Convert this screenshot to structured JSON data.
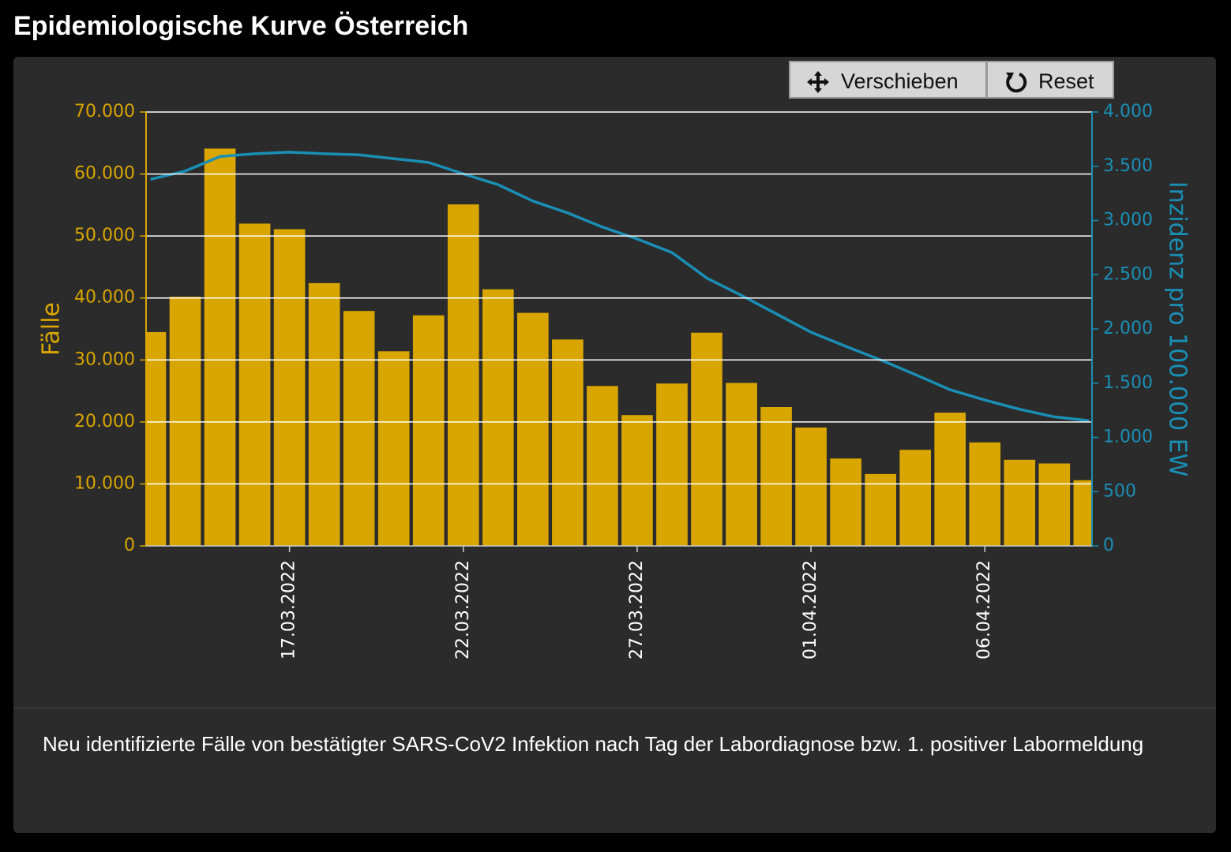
{
  "chart_data": {
    "type": "bar",
    "title": "Epidemiologische Kurve Österreich",
    "caption": "Neu identifizierte Fälle von bestätigter SARS-CoV2 Infektion nach Tag der Labordiagnose bzw. 1. positiver Labormeldung",
    "toolbar": {
      "pan": "Verschieben",
      "reset": "Reset"
    },
    "x": [
      "2022-03-13",
      "2022-03-14",
      "2022-03-15",
      "2022-03-16",
      "2022-03-17",
      "2022-03-18",
      "2022-03-19",
      "2022-03-20",
      "2022-03-21",
      "2022-03-22",
      "2022-03-23",
      "2022-03-24",
      "2022-03-25",
      "2022-03-26",
      "2022-03-27",
      "2022-03-28",
      "2022-03-29",
      "2022-03-30",
      "2022-03-31",
      "2022-04-01",
      "2022-04-02",
      "2022-04-03",
      "2022-04-04",
      "2022-04-05",
      "2022-04-06",
      "2022-04-07",
      "2022-04-08",
      "2022-04-09"
    ],
    "xlim": [
      "2022-03-12T21:00",
      "2022-04-09T02:00"
    ],
    "xticks": [
      {
        "value": "2022-03-17",
        "label": "17.03.2022"
      },
      {
        "value": "2022-03-22",
        "label": "22.03.2022"
      },
      {
        "value": "2022-03-27",
        "label": "27.03.2022"
      },
      {
        "value": "2022-04-01",
        "label": "01.04.2022"
      },
      {
        "value": "2022-04-06",
        "label": "06.04.2022"
      }
    ],
    "series": [
      {
        "name": "Fälle",
        "type": "bar",
        "color": "#d9a600",
        "values": [
          34500,
          40200,
          64100,
          52000,
          51100,
          42400,
          37900,
          31400,
          37200,
          55100,
          41400,
          37600,
          33300,
          25800,
          21100,
          26200,
          34400,
          26300,
          22400,
          19100,
          14100,
          11600,
          15500,
          21500,
          16700,
          13900,
          13300,
          10600
        ]
      },
      {
        "name": "Inzidenz pro 100.000 EW",
        "type": "line",
        "axis": "y2",
        "color": "#1a8fb5",
        "values": [
          3380,
          3455,
          3590,
          3615,
          3630,
          3615,
          3605,
          3570,
          3535,
          3430,
          3330,
          3180,
          3070,
          2940,
          2830,
          2705,
          2470,
          2310,
          2140,
          1970,
          1840,
          1715,
          1580,
          1440,
          1345,
          1260,
          1190,
          1155
        ]
      }
    ],
    "ylim": [
      0,
      70000
    ],
    "yticks": [
      0,
      {
        "value": 10000,
        "label": "10.000"
      },
      {
        "value": 20000,
        "label": "20.000"
      },
      {
        "value": 30000,
        "label": "30.000"
      },
      {
        "value": 40000,
        "label": "40.000"
      },
      {
        "value": 50000,
        "label": "50.000"
      },
      {
        "value": 60000,
        "label": "60.000"
      },
      {
        "value": 70000,
        "label": "70.000"
      }
    ],
    "y2lim": [
      0,
      4000
    ],
    "y2ticks": [
      0,
      500,
      {
        "value": 1000,
        "label": "1.000"
      },
      {
        "value": 1500,
        "label": "1.500"
      },
      {
        "value": 2000,
        "label": "2.000"
      },
      {
        "value": 2500,
        "label": "2.500"
      },
      {
        "value": 3000,
        "label": "3.000"
      },
      {
        "value": 3500,
        "label": "3.500"
      },
      {
        "value": 4000,
        "label": "4.000"
      }
    ],
    "grid": true
  }
}
